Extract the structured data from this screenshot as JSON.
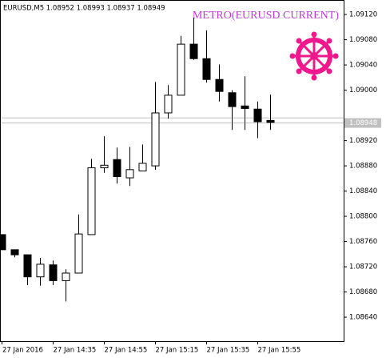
{
  "chart_data": {
    "type": "candlestick",
    "header": "EURUSD,M5  1.08952 1.08993 1.08937 1.08949",
    "annotation": "METRO(EURUSD CURRENT)",
    "categories": [
      "27 Jan 2016",
      null,
      null,
      null,
      "27 Jan 14:35",
      null,
      null,
      null,
      "27 Jan 14:55",
      null,
      null,
      null,
      "27 Jan 15:15",
      null,
      null,
      null,
      "27 Jan 15:35",
      null,
      null,
      null,
      "27 Jan 15:55",
      null
    ],
    "open": [
      1.08771,
      1.08747,
      1.08739,
      1.08704,
      1.08723,
      1.08698,
      1.0871,
      1.08771,
      1.08877,
      1.0889,
      1.08861,
      1.08872,
      1.0888,
      1.08964,
      1.08992,
      1.09073,
      1.0905,
      1.09017,
      1.08996,
      1.08975,
      1.0897,
      1.08952
    ],
    "high": [
      1.08771,
      1.08747,
      1.08739,
      1.08734,
      1.0873,
      1.08716,
      1.08803,
      1.08891,
      1.08927,
      1.08909,
      1.0891,
      1.08914,
      1.09013,
      1.09008,
      1.09086,
      1.09115,
      1.09095,
      1.09041,
      1.09,
      1.09022,
      1.08982,
      1.08993
    ],
    "low": [
      1.08747,
      1.08735,
      1.08691,
      1.0869,
      1.08691,
      1.08665,
      1.0871,
      1.08771,
      1.08869,
      1.08852,
      1.08848,
      1.08872,
      1.08874,
      1.08955,
      1.08992,
      1.09048,
      1.09012,
      1.08982,
      1.08937,
      1.08937,
      1.08924,
      1.08937
    ],
    "close": [
      1.08747,
      1.08739,
      1.08704,
      1.08724,
      1.08698,
      1.0871,
      1.08772,
      1.08877,
      1.08881,
      1.08863,
      1.08874,
      1.08884,
      1.08964,
      1.08992,
      1.09073,
      1.0905,
      1.09017,
      1.08998,
      1.08974,
      1.08971,
      1.0895,
      1.08949
    ],
    "up_color": "#ffffff",
    "down_color": "#000000",
    "ylim": [
      1.08602,
      1.09143
    ],
    "yticks": [
      {
        "value": 1.0864,
        "label": "1.08640"
      },
      {
        "value": 1.0868,
        "label": "1.08680"
      },
      {
        "value": 1.0872,
        "label": "1.08720"
      },
      {
        "value": 1.0876,
        "label": "1.08760"
      },
      {
        "value": 1.088,
        "label": "1.08800"
      },
      {
        "value": 1.0884,
        "label": "1.08840"
      },
      {
        "value": 1.0888,
        "label": "1.08880"
      },
      {
        "value": 1.0892,
        "label": "1.08920"
      },
      {
        "value": 1.09,
        "label": "1.09000"
      },
      {
        "value": 1.0904,
        "label": "1.09040"
      },
      {
        "value": 1.0908,
        "label": "1.09080"
      },
      {
        "value": 1.0912,
        "label": "1.09120"
      }
    ],
    "ask_line": 1.08956,
    "bid_line": {
      "value": 1.08948,
      "label": "1.08948"
    }
  }
}
